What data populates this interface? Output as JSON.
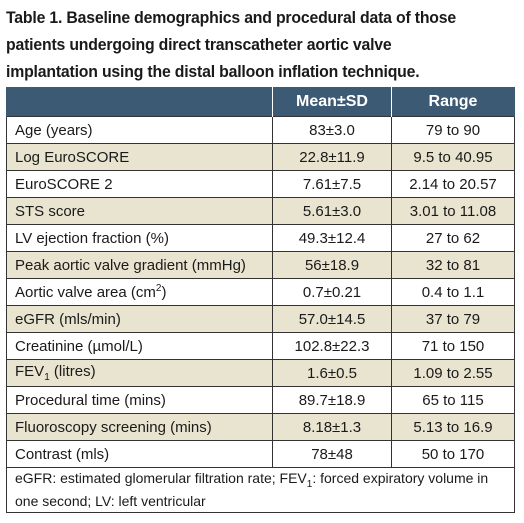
{
  "caption": "Table 1. Baseline demographics and procedural data of those patients undergoing direct transcatheter aortic valve implantation using the distal balloon inflation technique.",
  "table": {
    "headers": [
      "",
      "Mean±SD",
      "Range"
    ],
    "rows": [
      {
        "label": "Age (years)",
        "mean": "83±3.0",
        "range": "79 to 90"
      },
      {
        "label": "Log EuroSCORE",
        "mean": "22.8±11.9",
        "range": "9.5 to 40.95"
      },
      {
        "label": "EuroSCORE 2",
        "mean": "7.61±7.5",
        "range": "2.14 to 20.57"
      },
      {
        "label": "STS score",
        "mean": "5.61±3.0",
        "range": "3.01 to 11.08"
      },
      {
        "label": "LV ejection fraction (%)",
        "mean": "49.3±12.4",
        "range": "27 to 62"
      },
      {
        "label": "Peak aortic valve gradient (mmHg)",
        "mean": "56±18.9",
        "range": "32 to 81"
      },
      {
        "label_prefix": "Aortic valve area (cm",
        "label_sup": "2",
        "label_suffix": ")",
        "mean": "0.7±0.21",
        "range": "0.4 to 1.1"
      },
      {
        "label": "eGFR (mls/min)",
        "mean": "57.0±14.5",
        "range": "37 to 79"
      },
      {
        "label": "Creatinine (µmol/L)",
        "mean": "102.8±22.3",
        "range": "71 to 150"
      },
      {
        "label_prefix": "FEV",
        "label_sub": "1",
        "label_suffix": " (litres)",
        "mean": "1.6±0.5",
        "range": "1.09 to 2.55"
      },
      {
        "label": "Procedural time (mins)",
        "mean": "89.7±18.9",
        "range": "65 to 115"
      },
      {
        "label": "Fluoroscopy screening (mins)",
        "mean": "8.18±1.3",
        "range": "5.13 to 16.9"
      },
      {
        "label": "Contrast (mls)",
        "mean": "78±48",
        "range": "50 to 170"
      }
    ],
    "footnote_prefix": "eGFR: estimated glomerular filtration rate; FEV",
    "footnote_sub": "1",
    "footnote_suffix": ": forced expiratory volume in one second; LV: left ventricular"
  }
}
